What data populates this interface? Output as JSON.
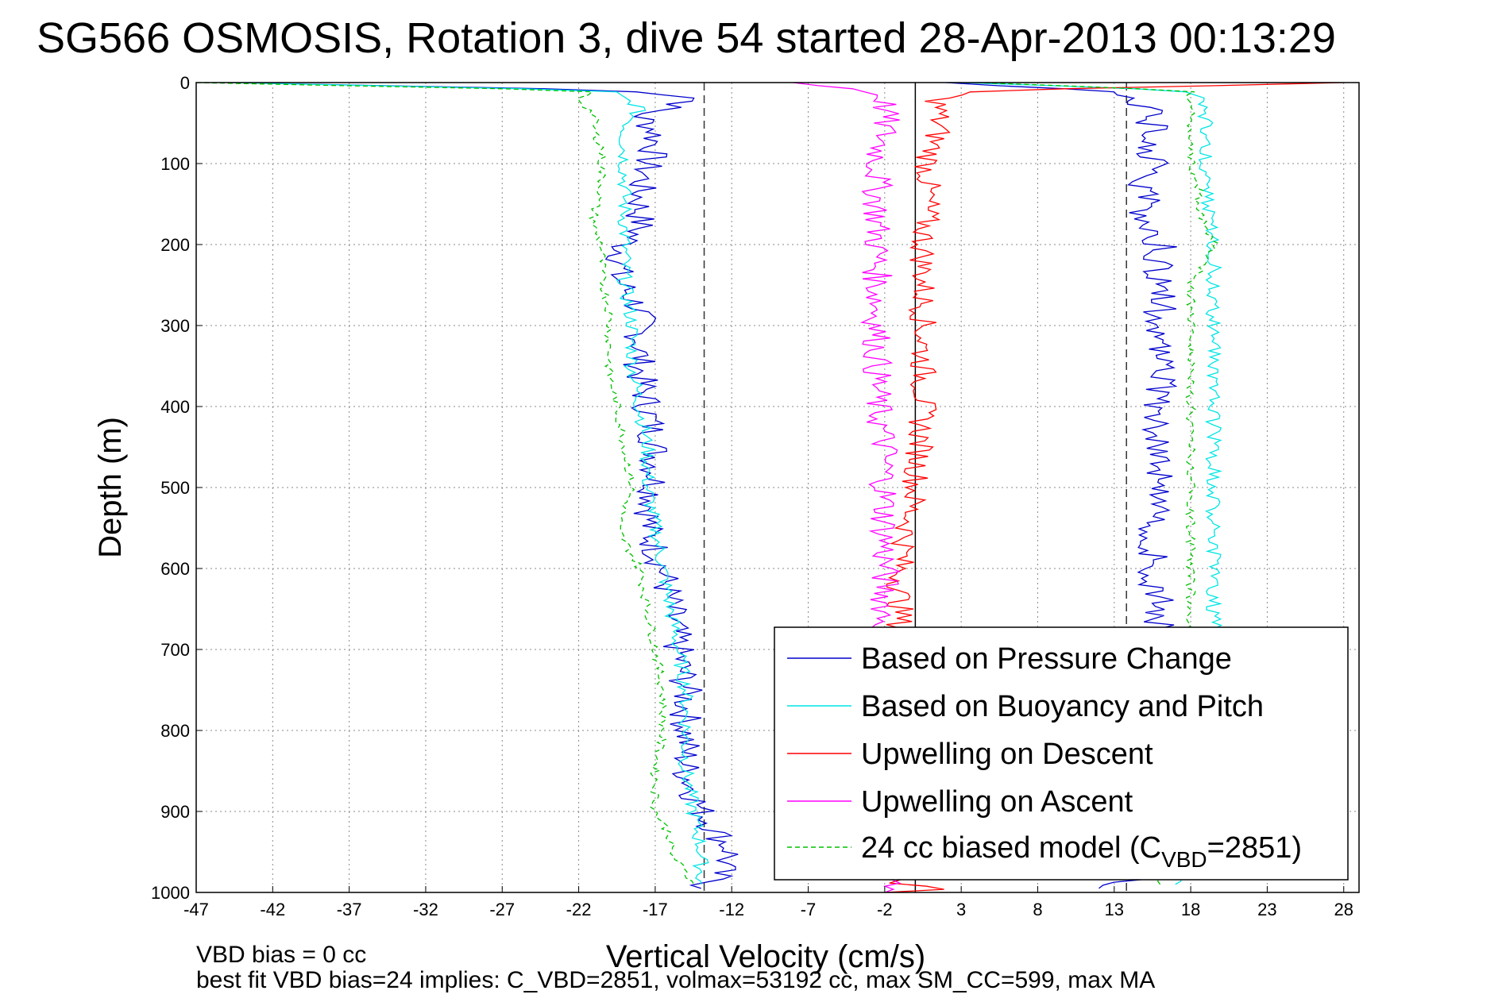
{
  "chart_data": {
    "type": "line",
    "title": "SG566 OSMOSIS, Rotation 3, dive 54 started 28-Apr-2013 00:13:29",
    "xlabel": "Vertical Velocity (cm/s)",
    "ylabel": "Depth (m)",
    "xlim": [
      -47,
      29
    ],
    "ylim": [
      1000,
      0
    ],
    "x_ticks": [
      -47,
      -42,
      -37,
      -32,
      -27,
      -22,
      -17,
      -12,
      -7,
      -2,
      3,
      8,
      13,
      18,
      23,
      28
    ],
    "y_ticks": [
      0,
      100,
      200,
      300,
      400,
      500,
      600,
      700,
      800,
      900,
      1000
    ],
    "grid": true,
    "legend_position": "bottom-right",
    "colors": {
      "pressure": "#0000cc",
      "buoyancy": "#00e5e5",
      "descent": "#ff0000",
      "ascent": "#ff00ff",
      "model": "#00c000"
    },
    "reference_lines": {
      "vertical_dashed": [
        -13.8,
        13.8
      ],
      "vertical_solid": [
        0
      ]
    },
    "series": [
      {
        "name": "Based on Pressure Change",
        "key": "pressure",
        "style": "solid",
        "color": "#0000cc",
        "descent": {
          "depth": [
            0,
            10,
            20,
            40,
            60,
            80,
            100,
            130,
            160,
            180,
            200,
            240,
            280,
            320,
            360,
            400,
            450,
            500,
            550,
            600,
            650,
            700,
            750,
            800,
            850,
            900,
            950,
            980,
            995
          ],
          "velocity": [
            -45,
            -18,
            -14,
            -18,
            -17,
            -17,
            -17.5,
            -18,
            -18,
            -18,
            -19,
            -19.5,
            -18,
            -18,
            -18,
            -17.5,
            -17,
            -17,
            -17.5,
            -16.5,
            -16,
            -15.5,
            -15,
            -15,
            -15,
            -14,
            -12,
            -13,
            -14
          ]
        },
        "ascent": {
          "depth": [
            995,
            980,
            950,
            900,
            850,
            800,
            750,
            700,
            650,
            600,
            550,
            500,
            450,
            400,
            350,
            300,
            250,
            200,
            160,
            120,
            100,
            80,
            60,
            40,
            20,
            10,
            0
          ],
          "velocity": [
            12,
            15.5,
            16,
            16,
            16,
            16,
            16,
            16,
            16,
            15.5,
            15.5,
            16,
            16,
            16,
            16,
            16,
            16,
            16,
            15,
            15,
            15.5,
            15,
            15.5,
            15.5,
            14,
            12,
            2
          ]
        }
      },
      {
        "name": "Based on Buoyancy and Pitch",
        "key": "buoyancy",
        "style": "solid",
        "color": "#00e5e5",
        "descent": {
          "depth": [
            0,
            10,
            30,
            60,
            100,
            150,
            200,
            250,
            300,
            350,
            400,
            450,
            500,
            550,
            600,
            650,
            700,
            750,
            800,
            850,
            900,
            950,
            990
          ],
          "velocity": [
            -45,
            -20,
            -18,
            -19,
            -19,
            -19,
            -19,
            -19,
            -18.5,
            -18.5,
            -18,
            -17.5,
            -17.5,
            -17,
            -16.5,
            -16,
            -15.5,
            -15,
            -15,
            -15,
            -14.5,
            -14,
            -14
          ]
        },
        "ascent": {
          "depth": [
            990,
            950,
            900,
            850,
            800,
            750,
            700,
            650,
            600,
            550,
            500,
            450,
            400,
            350,
            300,
            250,
            200,
            150,
            100,
            60,
            30,
            10,
            0
          ],
          "velocity": [
            17,
            19,
            19,
            19,
            19.5,
            19.5,
            19.5,
            19.5,
            19.5,
            19.5,
            19.5,
            19.5,
            19.5,
            19.5,
            19.5,
            19.5,
            19.5,
            19,
            19,
            19,
            19,
            18,
            3
          ]
        }
      },
      {
        "name": "Upwelling on Descent",
        "key": "descent",
        "style": "solid",
        "color": "#ff0000",
        "depth": [
          0,
          10,
          20,
          40,
          60,
          100,
          150,
          200,
          250,
          300,
          350,
          400,
          450,
          500,
          550,
          600,
          650,
          700,
          750,
          800,
          850,
          900,
          950,
          990,
          995,
          1000
        ],
        "velocity": [
          28,
          4,
          1.5,
          1.5,
          1.5,
          0.8,
          0.8,
          0.5,
          0.5,
          0.5,
          0.5,
          0.5,
          0.3,
          0,
          -0.5,
          -1,
          -1,
          -1,
          -1,
          -1,
          -1,
          -1,
          -1,
          -1,
          3,
          -2
        ]
      },
      {
        "name": "Upwelling on Ascent",
        "key": "ascent",
        "style": "solid",
        "color": "#ff00ff",
        "depth": [
          0,
          10,
          20,
          40,
          60,
          100,
          150,
          200,
          250,
          300,
          350,
          400,
          450,
          500,
          550,
          600,
          650,
          700,
          750,
          800,
          850,
          900,
          950,
          990,
          1000
        ],
        "velocity": [
          -8,
          -3,
          -2,
          -2,
          -2,
          -2.5,
          -2.5,
          -2.5,
          -2.5,
          -2.5,
          -2.5,
          -2.5,
          -2,
          -2,
          -2,
          -2,
          -2,
          -2,
          -2,
          -2,
          -2,
          -2,
          -2,
          -2,
          -2
        ]
      },
      {
        "name": "24 cc biased model (C",
        "subscript": "VBD",
        "name_suffix": "=2851)",
        "key": "model",
        "style": "dashed",
        "color": "#00c000",
        "descent": {
          "depth": [
            0,
            10,
            20,
            40,
            60,
            80,
            100,
            130,
            160,
            180,
            200,
            240,
            280,
            320,
            360,
            400,
            450,
            500,
            550,
            600,
            650,
            700,
            750,
            800,
            850,
            900,
            930,
            950,
            990
          ],
          "velocity": [
            -47,
            -21,
            -22,
            -21,
            -21,
            -20.5,
            -20.5,
            -20.5,
            -21,
            -21,
            -20.5,
            -20.5,
            -20,
            -20,
            -20,
            -19.5,
            -19,
            -18.5,
            -19.5,
            -18,
            -17.5,
            -17,
            -16.5,
            -16.5,
            -17,
            -17,
            -16,
            -16,
            -14.5
          ]
        },
        "ascent": {
          "depth": [
            990,
            950,
            900,
            850,
            800,
            750,
            700,
            650,
            600,
            550,
            500,
            450,
            400,
            350,
            300,
            250,
            200,
            160,
            130,
            100,
            60,
            30,
            10,
            0
          ],
          "velocity": [
            16,
            17.5,
            17.5,
            17.5,
            18,
            18,
            18,
            18,
            18,
            18,
            18,
            18,
            18,
            18,
            18,
            18,
            19.5,
            18.5,
            18.5,
            18,
            18,
            18,
            18,
            4
          ]
        }
      }
    ]
  },
  "annotations": {
    "bias_line": "VBD bias = 0 cc",
    "fit_line": "best fit VBD bias=24 implies: C_VBD=2851, volmax=53192 cc, max SM_CC=599, max MA"
  }
}
